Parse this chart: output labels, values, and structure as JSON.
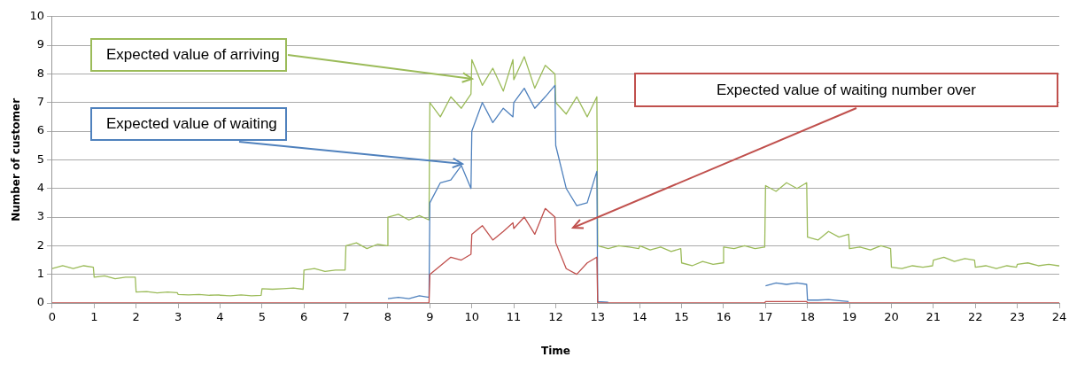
{
  "chart_data": {
    "type": "line",
    "xlabel": "Time",
    "ylabel": "Number of customer",
    "xlim": [
      0,
      24
    ],
    "xticks": [
      0,
      1,
      2,
      3,
      4,
      5,
      6,
      7,
      8,
      9,
      10,
      11,
      12,
      13,
      14,
      15,
      16,
      17,
      18,
      19,
      20,
      21,
      22,
      23,
      24
    ],
    "ylim": [
      0,
      10
    ],
    "yticks": [
      0,
      1,
      2,
      3,
      4,
      5,
      6,
      7,
      8,
      9,
      10
    ],
    "grid": "y",
    "x": [
      0,
      0.25,
      0.5,
      0.75,
      0.98,
      1,
      1.25,
      1.5,
      1.75,
      1.98,
      2,
      2.25,
      2.5,
      2.75,
      2.98,
      3,
      3.25,
      3.5,
      3.75,
      3.98,
      4,
      4.25,
      4.5,
      4.75,
      4.98,
      5,
      5.25,
      5.5,
      5.75,
      5.98,
      6,
      6.25,
      6.5,
      6.75,
      6.98,
      7,
      7.25,
      7.5,
      7.75,
      7.98,
      8,
      8.25,
      8.5,
      8.75,
      8.98,
      9,
      9.25,
      9.5,
      9.75,
      9.98,
      10,
      10.25,
      10.5,
      10.75,
      10.98,
      11,
      11.25,
      11.5,
      11.75,
      11.98,
      12,
      12.25,
      12.5,
      12.75,
      12.98,
      13,
      13.25,
      13.5,
      13.75,
      13.98,
      14,
      14.25,
      14.5,
      14.75,
      14.98,
      15,
      15.25,
      15.5,
      15.75,
      15.98,
      16,
      16.25,
      16.5,
      16.75,
      16.98,
      17,
      17.25,
      17.5,
      17.75,
      17.98,
      18,
      18.25,
      18.5,
      18.75,
      18.98,
      19,
      19.25,
      19.5,
      19.75,
      19.98,
      20,
      20.25,
      20.5,
      20.75,
      20.98,
      21,
      21.25,
      21.5,
      21.75,
      21.98,
      22,
      22.25,
      22.5,
      22.75,
      22.98,
      23,
      23.25,
      23.5,
      23.75,
      23.98,
      24
    ],
    "series": [
      {
        "name": "Expected value of arriving",
        "color": "#9bbb59",
        "values": [
          1.2,
          1.3,
          1.2,
          1.3,
          1.25,
          0.9,
          0.95,
          0.85,
          0.9,
          0.9,
          0.38,
          0.4,
          0.35,
          0.38,
          0.36,
          0.3,
          0.28,
          0.3,
          0.27,
          0.28,
          0.27,
          0.25,
          0.28,
          0.25,
          0.27,
          0.5,
          0.48,
          0.5,
          0.52,
          0.48,
          1.15,
          1.2,
          1.1,
          1.15,
          1.15,
          2.0,
          2.1,
          1.9,
          2.05,
          2.0,
          3.0,
          3.1,
          2.9,
          3.05,
          2.9,
          7.0,
          6.5,
          7.2,
          6.8,
          7.3,
          8.5,
          7.6,
          8.2,
          7.4,
          8.5,
          7.8,
          8.6,
          7.5,
          8.3,
          8.0,
          7.0,
          6.6,
          7.2,
          6.5,
          7.2,
          2.0,
          1.9,
          2.0,
          1.95,
          1.9,
          2.0,
          1.85,
          1.95,
          1.8,
          1.9,
          1.4,
          1.3,
          1.45,
          1.35,
          1.4,
          1.95,
          1.9,
          2.0,
          1.9,
          1.95,
          4.1,
          3.9,
          4.2,
          4.0,
          4.2,
          2.3,
          2.2,
          2.5,
          2.3,
          2.4,
          1.9,
          1.95,
          1.85,
          2.0,
          1.9,
          1.25,
          1.2,
          1.3,
          1.25,
          1.3,
          1.5,
          1.6,
          1.45,
          1.55,
          1.5,
          1.25,
          1.3,
          1.2,
          1.3,
          1.25,
          1.35,
          1.4,
          1.3,
          1.35,
          1.3,
          1.3
        ]
      },
      {
        "name": "Expected value of waiting",
        "color": "#4f81bd",
        "values": [
          null,
          null,
          null,
          null,
          null,
          null,
          null,
          null,
          null,
          null,
          null,
          null,
          null,
          null,
          null,
          null,
          null,
          null,
          null,
          null,
          null,
          null,
          null,
          null,
          null,
          null,
          null,
          null,
          null,
          null,
          null,
          null,
          null,
          null,
          null,
          null,
          null,
          null,
          null,
          null,
          0.15,
          0.2,
          0.15,
          0.25,
          0.2,
          3.5,
          4.2,
          4.3,
          4.8,
          4.0,
          6.0,
          7.0,
          6.3,
          6.8,
          6.5,
          7.0,
          7.5,
          6.8,
          7.2,
          7.6,
          5.5,
          4.0,
          3.4,
          3.5,
          4.6,
          0.05,
          0.03,
          null,
          null,
          null,
          null,
          null,
          null,
          null,
          null,
          null,
          null,
          null,
          null,
          null,
          null,
          null,
          null,
          null,
          null,
          0.6,
          0.7,
          0.65,
          0.7,
          0.65,
          0.1,
          0.1,
          0.12,
          0.08,
          0.05,
          null,
          null,
          null,
          null,
          null,
          null,
          null,
          null,
          null,
          null,
          null,
          null,
          null,
          null,
          null,
          null,
          null,
          null,
          null,
          null,
          null,
          null,
          null,
          null,
          null,
          null
        ]
      },
      {
        "name": "Expected value of waiting number over",
        "color": "#c0504d",
        "values": [
          0,
          0,
          0,
          0,
          0,
          0,
          0,
          0,
          0,
          0,
          0,
          0,
          0,
          0,
          0,
          0,
          0,
          0,
          0,
          0,
          0,
          0,
          0,
          0,
          0,
          0,
          0,
          0,
          0,
          0,
          0,
          0,
          0,
          0,
          0,
          0,
          0,
          0,
          0,
          0,
          0,
          0,
          0,
          0,
          0,
          1.0,
          1.3,
          1.6,
          1.5,
          1.7,
          2.4,
          2.7,
          2.2,
          2.5,
          2.8,
          2.6,
          3.0,
          2.4,
          3.3,
          3.0,
          2.1,
          1.2,
          1.0,
          1.4,
          1.6,
          0,
          0,
          0,
          0,
          0,
          0,
          0,
          0,
          0,
          0,
          0,
          0,
          0,
          0,
          0,
          0,
          0,
          0,
          0,
          0,
          0.05,
          0.05,
          0.05,
          0.05,
          0.05,
          0,
          0,
          0,
          0,
          0,
          0,
          0,
          0,
          0,
          0,
          0,
          0,
          0,
          0,
          0,
          0,
          0,
          0,
          0,
          0,
          0,
          0,
          0,
          0,
          0,
          0,
          0,
          0,
          0,
          0,
          0
        ]
      }
    ]
  }
}
